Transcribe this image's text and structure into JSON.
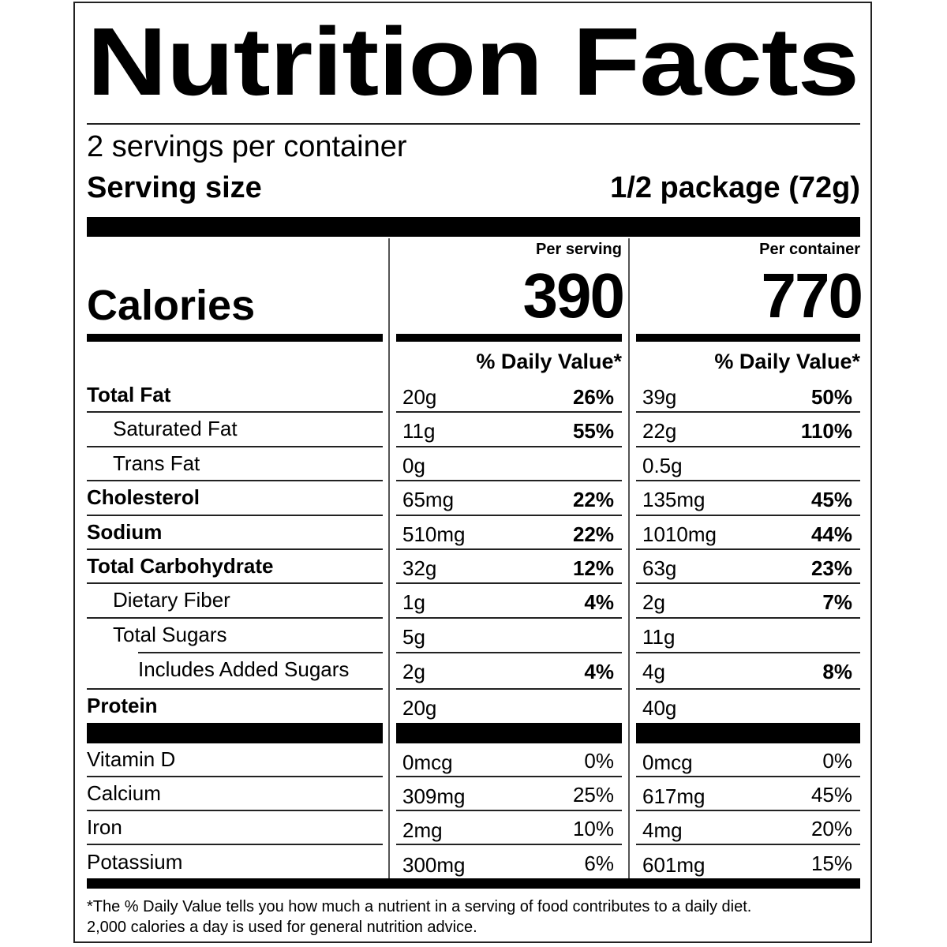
{
  "title": "Nutrition Facts",
  "servings_per_container": "2 servings per container",
  "serving_size_label": "Serving size",
  "serving_size_value": "1/2 package (72g)",
  "calories_label": "Calories",
  "columns": [
    {
      "header": "Per serving",
      "calories": "390",
      "dv_header": "% Daily Value*"
    },
    {
      "header": "Per container",
      "calories": "770",
      "dv_header": "% Daily Value*"
    }
  ],
  "nutrients": [
    {
      "label": "Total Fat",
      "level": 0,
      "bold": true,
      "values": [
        [
          "20g",
          "26%"
        ],
        [
          "39g",
          "50%"
        ]
      ]
    },
    {
      "label": "Saturated Fat",
      "level": 1,
      "bold": false,
      "values": [
        [
          "11g",
          "55%"
        ],
        [
          "22g",
          "110%"
        ]
      ]
    },
    {
      "label": "Trans Fat",
      "level": 1,
      "bold": false,
      "values": [
        [
          "0g",
          ""
        ],
        [
          "0.5g",
          ""
        ]
      ]
    },
    {
      "label": "Cholesterol",
      "level": 0,
      "bold": true,
      "values": [
        [
          "65mg",
          "22%"
        ],
        [
          "135mg",
          "45%"
        ]
      ]
    },
    {
      "label": "Sodium",
      "level": 0,
      "bold": true,
      "values": [
        [
          "510mg",
          "22%"
        ],
        [
          "1010mg",
          "44%"
        ]
      ]
    },
    {
      "label": "Total Carbohydrate",
      "level": 0,
      "bold": true,
      "values": [
        [
          "32g",
          "12%"
        ],
        [
          "63g",
          "23%"
        ]
      ]
    },
    {
      "label": "Dietary Fiber",
      "level": 1,
      "bold": false,
      "values": [
        [
          "1g",
          "4%"
        ],
        [
          "2g",
          "7%"
        ]
      ]
    },
    {
      "label": "Total Sugars",
      "level": 1,
      "bold": false,
      "values": [
        [
          "5g",
          ""
        ],
        [
          "11g",
          ""
        ]
      ]
    },
    {
      "label": "Includes Added Sugars",
      "level": 2,
      "bold": false,
      "values": [
        [
          "2g",
          "4%"
        ],
        [
          "4g",
          "8%"
        ]
      ]
    },
    {
      "label": "Protein",
      "level": 0,
      "bold": true,
      "values": [
        [
          "20g",
          ""
        ],
        [
          "40g",
          ""
        ]
      ]
    }
  ],
  "vitamins": [
    {
      "label": "Vitamin D",
      "values": [
        [
          "0mcg",
          "0%"
        ],
        [
          "0mcg",
          "0%"
        ]
      ]
    },
    {
      "label": "Calcium",
      "values": [
        [
          "309mg",
          "25%"
        ],
        [
          "617mg",
          "45%"
        ]
      ]
    },
    {
      "label": "Iron",
      "values": [
        [
          "2mg",
          "10%"
        ],
        [
          "4mg",
          "20%"
        ]
      ]
    },
    {
      "label": "Potassium",
      "values": [
        [
          "300mg",
          "6%"
        ],
        [
          "601mg",
          "15%"
        ]
      ]
    }
  ],
  "footnote": [
    "*The % Daily Value tells you how much a nutrient in a serving of food contributes to a daily diet.",
    "2,000 calories a day is used for general nutrition advice."
  ]
}
